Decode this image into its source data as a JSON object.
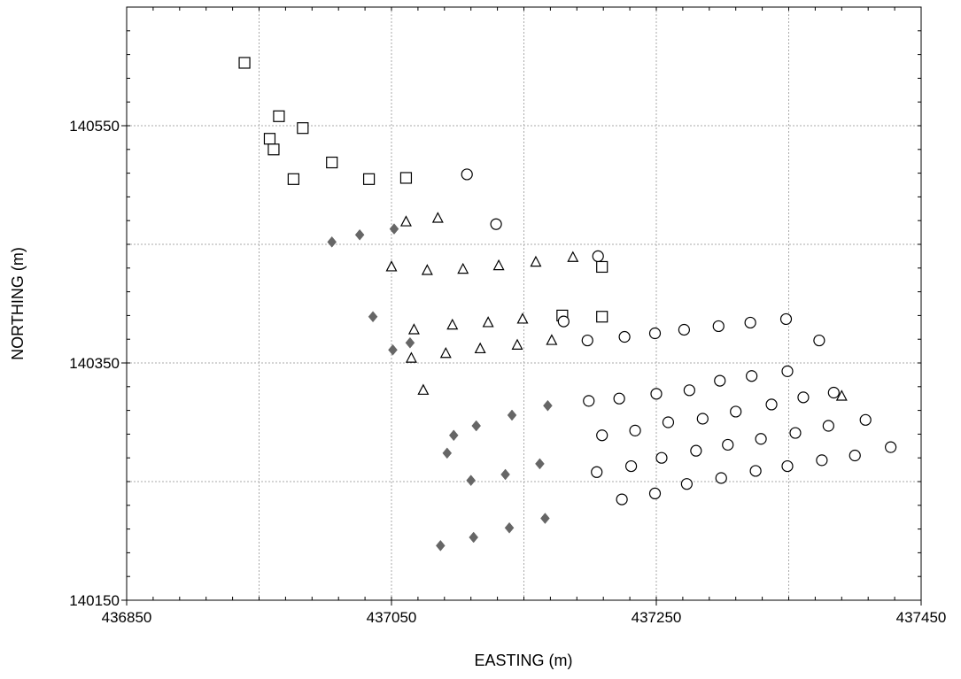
{
  "chart_data": {
    "type": "scatter",
    "title": "",
    "xlabel": "EASTING (m)",
    "ylabel": "NORTHING (m)",
    "xlim": [
      436850,
      437450
    ],
    "ylim": [
      140150,
      140650
    ],
    "x_ticks": [
      436850,
      437050,
      437250,
      437450
    ],
    "x_tick_labels": [
      "436850",
      "437050",
      "437250",
      "437450"
    ],
    "y_ticks": [
      140150,
      140350,
      140550
    ],
    "y_tick_labels": [
      "140150",
      "140350",
      "140550"
    ],
    "x_grid": [
      436950,
      437050,
      437150,
      437250,
      437350
    ],
    "y_grid": [
      140250,
      140350,
      140450,
      140550
    ],
    "grid": true,
    "colors": {
      "diamond": "#666666",
      "outline": "#000000"
    },
    "series": [
      {
        "marker": "square",
        "points": [
          [
            436939,
            140603
          ],
          [
            436958,
            140539
          ],
          [
            436961,
            140530
          ],
          [
            436965,
            140558
          ],
          [
            436983,
            140548
          ],
          [
            436976,
            140505
          ],
          [
            437005,
            140519
          ],
          [
            437033,
            140505
          ],
          [
            437061,
            140506
          ],
          [
            437209,
            140431
          ],
          [
            437209,
            140389
          ],
          [
            437179,
            140390
          ]
        ]
      },
      {
        "marker": "diamond",
        "points": [
          [
            437005,
            140452
          ],
          [
            437026,
            140458
          ],
          [
            437052,
            140463
          ],
          [
            437036,
            140389
          ],
          [
            437051,
            140361
          ],
          [
            437064,
            140367
          ],
          [
            437092,
            140274
          ],
          [
            437097,
            140289
          ],
          [
            437114,
            140297
          ],
          [
            437141,
            140306
          ],
          [
            437168,
            140314
          ],
          [
            437110,
            140251
          ],
          [
            437136,
            140256
          ],
          [
            437162,
            140265
          ],
          [
            437087,
            140196
          ],
          [
            437112,
            140203
          ],
          [
            437139,
            140211
          ],
          [
            437166,
            140219
          ]
        ]
      },
      {
        "marker": "triangle",
        "points": [
          [
            437061,
            140469
          ],
          [
            437085,
            140472
          ],
          [
            437050,
            140431
          ],
          [
            437077,
            140428
          ],
          [
            437104,
            140429
          ],
          [
            437131,
            140432
          ],
          [
            437159,
            140435
          ],
          [
            437187,
            140439
          ],
          [
            437067,
            140378
          ],
          [
            437096,
            140382
          ],
          [
            437123,
            140384
          ],
          [
            437149,
            140387
          ],
          [
            437065,
            140354
          ],
          [
            437091,
            140358
          ],
          [
            437117,
            140362
          ],
          [
            437145,
            140365
          ],
          [
            437171,
            140369
          ],
          [
            437074,
            140327
          ],
          [
            437390,
            140322
          ]
        ]
      },
      {
        "marker": "circle",
        "points": [
          [
            437107,
            140509
          ],
          [
            437129,
            140467
          ],
          [
            437206,
            140440
          ],
          [
            437180,
            140385
          ],
          [
            437198,
            140369
          ],
          [
            437226,
            140372
          ],
          [
            437249,
            140375
          ],
          [
            437271,
            140378
          ],
          [
            437297,
            140381
          ],
          [
            437321,
            140384
          ],
          [
            437348,
            140387
          ],
          [
            437373,
            140369
          ],
          [
            437199,
            140318
          ],
          [
            437222,
            140320
          ],
          [
            437250,
            140324
          ],
          [
            437275,
            140327
          ],
          [
            437298,
            140335
          ],
          [
            437322,
            140339
          ],
          [
            437349,
            140343
          ],
          [
            437209,
            140289
          ],
          [
            437234,
            140293
          ],
          [
            437259,
            140300
          ],
          [
            437285,
            140303
          ],
          [
            437310,
            140309
          ],
          [
            437337,
            140315
          ],
          [
            437361,
            140321
          ],
          [
            437384,
            140325
          ],
          [
            437205,
            140258
          ],
          [
            437231,
            140263
          ],
          [
            437254,
            140270
          ],
          [
            437280,
            140276
          ],
          [
            437304,
            140281
          ],
          [
            437329,
            140286
          ],
          [
            437355,
            140291
          ],
          [
            437380,
            140297
          ],
          [
            437408,
            140302
          ],
          [
            437224,
            140235
          ],
          [
            437249,
            140240
          ],
          [
            437273,
            140248
          ],
          [
            437299,
            140253
          ],
          [
            437325,
            140259
          ],
          [
            437349,
            140263
          ],
          [
            437375,
            140268
          ],
          [
            437400,
            140272
          ],
          [
            437427,
            140279
          ]
        ]
      }
    ]
  }
}
